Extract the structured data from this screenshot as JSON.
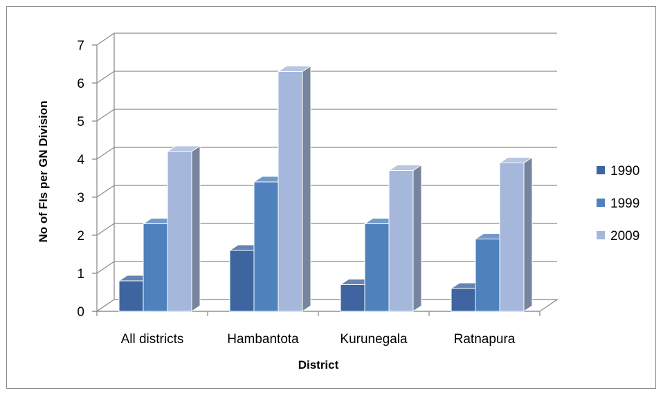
{
  "chart_data": {
    "type": "bar",
    "title": "",
    "xlabel": "District",
    "ylabel": "No of FIs per GN Division",
    "categories": [
      "All districts",
      "Hambantota",
      "Kurunegala",
      "Ratnapura"
    ],
    "series": [
      {
        "name": "1990",
        "values": [
          0.8,
          1.6,
          0.7,
          0.6
        ],
        "color": "#3e65a0"
      },
      {
        "name": "1999",
        "values": [
          2.3,
          3.4,
          2.3,
          1.9
        ],
        "color": "#4f81bd"
      },
      {
        "name": "2009",
        "values": [
          4.2,
          6.3,
          3.7,
          3.9
        ],
        "color": "#a5b8db"
      }
    ],
    "yticks": [
      "0",
      "1",
      "2",
      "3",
      "4",
      "5",
      "6",
      "7"
    ],
    "ylim": [
      0,
      7
    ],
    "grid": true,
    "legend_position": "right",
    "style": "3d-clustered-column"
  }
}
